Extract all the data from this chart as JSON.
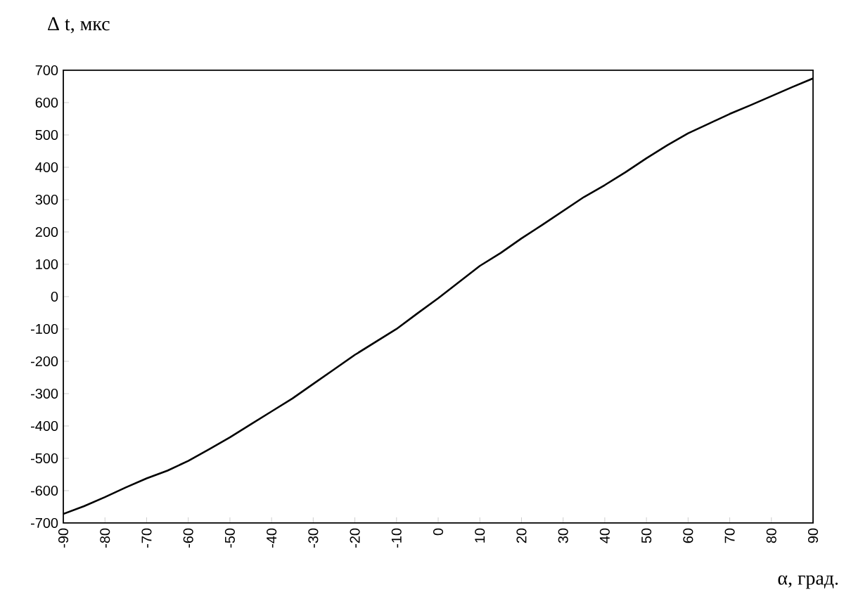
{
  "chart_data": {
    "type": "line",
    "xlabel": "α, град.",
    "ylabel": "Δ t, мкс",
    "x": [
      -90,
      -85,
      -80,
      -75,
      -70,
      -65,
      -60,
      -55,
      -50,
      -45,
      -40,
      -35,
      -30,
      -25,
      -20,
      -15,
      -10,
      -5,
      0,
      5,
      10,
      15,
      20,
      25,
      30,
      35,
      40,
      45,
      50,
      55,
      60,
      65,
      70,
      75,
      80,
      85,
      90
    ],
    "series": [
      {
        "color": "#000000",
        "values": [
          -672,
          -648,
          -620,
          -590,
          -562,
          -538,
          -508,
          -472,
          -435,
          -395,
          -355,
          -315,
          -270,
          -225,
          -180,
          -140,
          -100,
          -52,
          -5,
          45,
          95,
          135,
          180,
          222,
          265,
          308,
          345,
          385,
          428,
          468,
          505,
          535,
          565,
          592,
          620,
          648,
          675
        ]
      }
    ],
    "xlim": [
      -90,
      90
    ],
    "ylim": [
      -700,
      700
    ],
    "xticks": [
      -90,
      -80,
      -70,
      -60,
      -50,
      -40,
      -30,
      -20,
      -10,
      0,
      10,
      20,
      30,
      40,
      50,
      60,
      70,
      80,
      90
    ],
    "yticks": [
      -700,
      -600,
      -500,
      -400,
      -300,
      -200,
      -100,
      0,
      100,
      200,
      300,
      400,
      500,
      600,
      700
    ],
    "grid": false,
    "marker": "none",
    "line_style": "solid"
  }
}
